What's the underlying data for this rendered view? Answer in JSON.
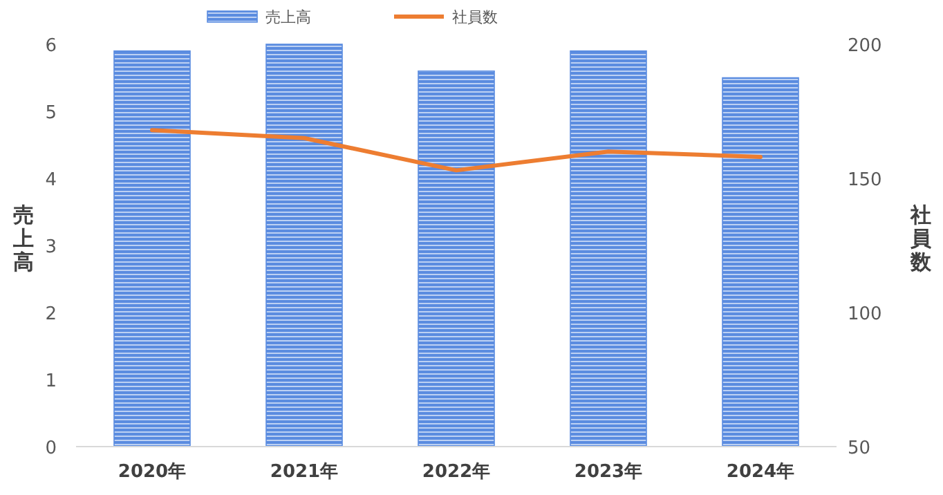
{
  "chart_data": {
    "type": "bar",
    "categories": [
      "2020年",
      "2021年",
      "2022年",
      "2023年",
      "2024年"
    ],
    "series": [
      {
        "name": "売上高",
        "color": "#5b8ce0",
        "values": [
          5.9,
          6.0,
          5.6,
          5.9,
          5.5
        ]
      },
      {
        "name": "社員数",
        "type": "line",
        "axis": "y2",
        "color": "#ed7d31",
        "values": [
          168,
          165,
          153,
          160,
          158
        ]
      }
    ],
    "ylabel": "売上高",
    "y2label": "社員数",
    "ylim": [
      0,
      6
    ],
    "yticks": [
      0,
      1,
      2,
      3,
      4,
      5,
      6
    ],
    "y2lim": [
      50,
      200
    ],
    "y2ticks": [
      50,
      100,
      150,
      200
    ],
    "legend": "top",
    "grid": false,
    "marker": "none"
  }
}
